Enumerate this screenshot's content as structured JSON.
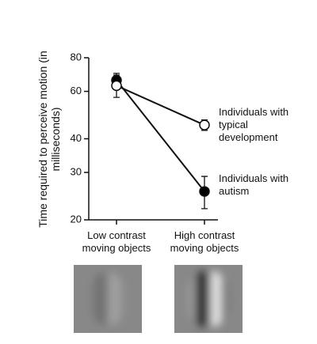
{
  "chart_data": {
    "type": "line",
    "y_label": "Time required to perceive motion (in milliseconds)",
    "categories": [
      "Low contrast moving objects",
      "High contrast moving objects"
    ],
    "series": [
      {
        "name": "Individuals with typical development",
        "color": "#ffffff",
        "values": [
          63,
          45
        ],
        "errors": [
          6,
          2
        ]
      },
      {
        "name": "Individuals with autism",
        "color": "#000000",
        "values": [
          66,
          25.5
        ],
        "errors": [
          4,
          3.5
        ]
      }
    ],
    "ylim": [
      20,
      80
    ],
    "yticks": [
      20,
      30,
      40,
      60,
      80
    ],
    "log_y": true
  }
}
